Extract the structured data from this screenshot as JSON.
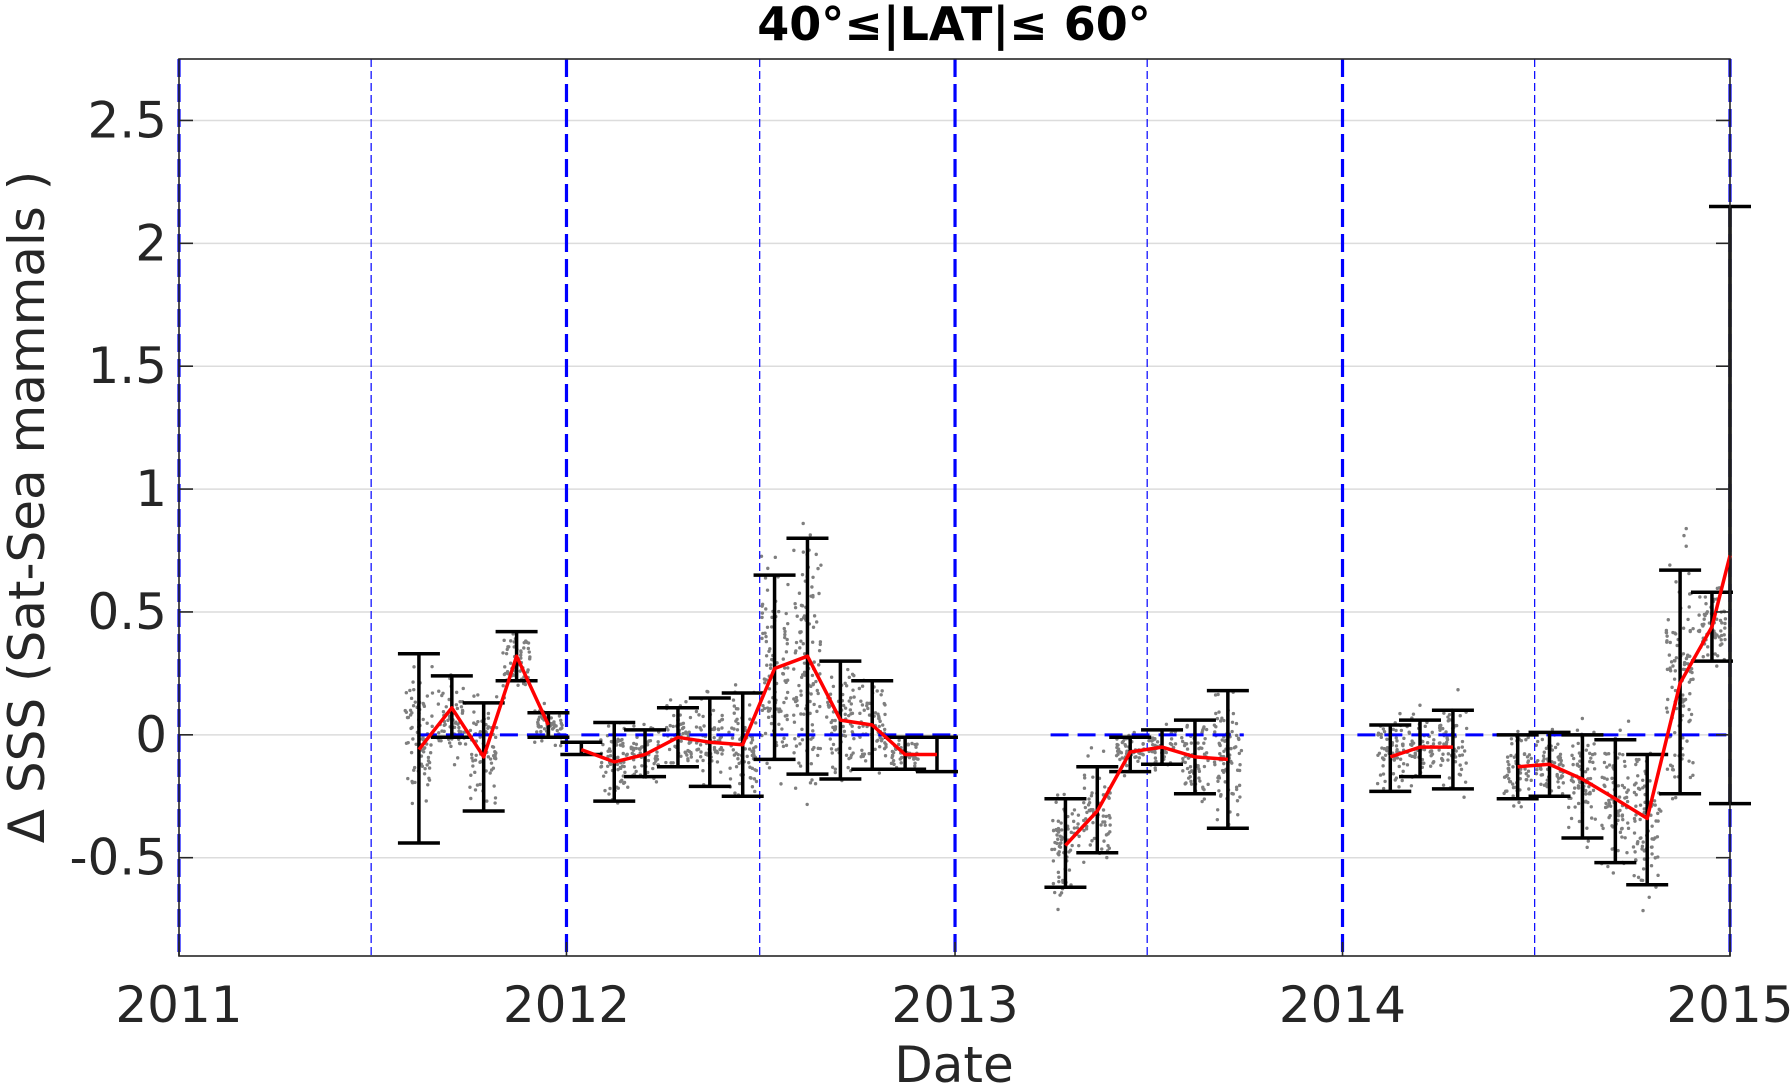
{
  "chart_data": {
    "type": "scatter",
    "title": "40°≤|LAT|≤ 60°",
    "xlabel": "Date",
    "ylabel": "Δ SSS (Sat-Sea mammals )",
    "xlim": [
      "2011-01-01",
      "2015-01-01"
    ],
    "ylim": [
      -0.9,
      2.75
    ],
    "x_ticks": [
      "2011",
      "2012",
      "2013",
      "2014",
      "2015"
    ],
    "y_ticks": [
      -0.5,
      0,
      0.5,
      1,
      1.5,
      2,
      2.5
    ],
    "y_tick_labels": [
      "-0.5",
      "0",
      "0.5",
      "1",
      "1.5",
      "2",
      "2.5"
    ],
    "grid": "horizontal",
    "year_lines": [
      "2011-01-01",
      "2012-01-01",
      "2013-01-01",
      "2014-01-01",
      "2015-01-01"
    ],
    "midyear_lines": [
      "2011-07-01",
      "2012-07-01",
      "2013-07-01",
      "2014-07-01"
    ],
    "zero_reference_segments": [
      [
        "2011-08-15",
        "2012-01-01"
      ],
      [
        "2012-01-15",
        "2013-01-01"
      ],
      [
        "2013-04-01",
        "2013-09-30"
      ],
      [
        "2014-01-15",
        "2015-01-01"
      ]
    ],
    "monthly_mean": {
      "color": "#ff0000",
      "segments": [
        {
          "x": [
            "2011-08-15",
            "2011-09-15",
            "2011-10-15",
            "2011-11-15",
            "2011-12-15"
          ],
          "y": [
            -0.06,
            0.11,
            -0.09,
            0.32,
            0.04
          ]
        },
        {
          "x": [
            "2012-01-15",
            "2012-02-15",
            "2012-03-15",
            "2012-04-15",
            "2012-05-15",
            "2012-06-15",
            "2012-07-15",
            "2012-08-15",
            "2012-09-15",
            "2012-10-15",
            "2012-11-15",
            "2012-12-15"
          ],
          "y": [
            -0.06,
            -0.11,
            -0.08,
            -0.01,
            -0.03,
            -0.04,
            0.27,
            0.32,
            0.06,
            0.04,
            -0.08,
            -0.08
          ]
        },
        {
          "x": [
            "2013-04-15",
            "2013-05-15",
            "2013-06-15",
            "2013-07-15",
            "2013-08-15",
            "2013-09-15"
          ],
          "y": [
            -0.45,
            -0.31,
            -0.07,
            -0.05,
            -0.09,
            -0.1
          ]
        },
        {
          "x": [
            "2014-02-15",
            "2014-03-15",
            "2014-04-15"
          ],
          "y": [
            -0.09,
            -0.05,
            -0.05
          ]
        },
        {
          "x": [
            "2014-06-15",
            "2014-07-15",
            "2014-08-15",
            "2014-09-15",
            "2014-10-15",
            "2014-11-15",
            "2014-12-15",
            "2015-01-01"
          ],
          "y": [
            -0.13,
            -0.12,
            -0.18,
            -0.26,
            -0.34,
            0.21,
            0.44,
            0.73
          ]
        }
      ]
    },
    "error_bars": [
      {
        "x": "2011-08-15",
        "low": -0.44,
        "high": 0.33
      },
      {
        "x": "2011-09-15",
        "low": -0.01,
        "high": 0.24
      },
      {
        "x": "2011-10-15",
        "low": -0.31,
        "high": 0.13
      },
      {
        "x": "2011-11-15",
        "low": 0.22,
        "high": 0.42
      },
      {
        "x": "2011-12-15",
        "low": -0.01,
        "high": 0.09
      },
      {
        "x": "2012-01-15",
        "low": -0.08,
        "high": -0.03
      },
      {
        "x": "2012-02-15",
        "low": -0.27,
        "high": 0.05
      },
      {
        "x": "2012-03-15",
        "low": -0.17,
        "high": 0.02
      },
      {
        "x": "2012-04-15",
        "low": -0.13,
        "high": 0.11
      },
      {
        "x": "2012-05-15",
        "low": -0.21,
        "high": 0.15
      },
      {
        "x": "2012-06-15",
        "low": -0.25,
        "high": 0.17
      },
      {
        "x": "2012-07-15",
        "low": -0.1,
        "high": 0.65
      },
      {
        "x": "2012-08-15",
        "low": -0.16,
        "high": 0.8
      },
      {
        "x": "2012-09-15",
        "low": -0.18,
        "high": 0.3
      },
      {
        "x": "2012-10-15",
        "low": -0.14,
        "high": 0.22
      },
      {
        "x": "2012-11-15",
        "low": -0.14,
        "high": -0.01
      },
      {
        "x": "2012-12-15",
        "low": -0.15,
        "high": -0.01
      },
      {
        "x": "2013-04-15",
        "low": -0.62,
        "high": -0.26
      },
      {
        "x": "2013-05-15",
        "low": -0.48,
        "high": -0.13
      },
      {
        "x": "2013-06-15",
        "low": -0.15,
        "high": -0.01
      },
      {
        "x": "2013-07-15",
        "low": -0.12,
        "high": 0.02
      },
      {
        "x": "2013-08-15",
        "low": -0.24,
        "high": 0.06
      },
      {
        "x": "2013-09-15",
        "low": -0.38,
        "high": 0.18
      },
      {
        "x": "2014-02-15",
        "low": -0.23,
        "high": 0.04
      },
      {
        "x": "2014-03-15",
        "low": -0.17,
        "high": 0.06
      },
      {
        "x": "2014-04-15",
        "low": -0.22,
        "high": 0.1
      },
      {
        "x": "2014-06-15",
        "low": -0.26,
        "high": 0.0
      },
      {
        "x": "2014-07-15",
        "low": -0.25,
        "high": 0.01
      },
      {
        "x": "2014-08-15",
        "low": -0.42,
        "high": 0.0
      },
      {
        "x": "2014-09-15",
        "low": -0.52,
        "high": -0.02
      },
      {
        "x": "2014-10-15",
        "low": -0.61,
        "high": -0.08
      },
      {
        "x": "2014-11-15",
        "low": -0.24,
        "high": 0.67
      },
      {
        "x": "2014-12-15",
        "low": 0.3,
        "high": 0.58
      },
      {
        "x": "2015-01-01",
        "low": -0.28,
        "high": 2.15
      }
    ],
    "scatter_clusters": [
      {
        "x": "2011-08-15",
        "y_center": 0.0,
        "y_spread": 0.22
      },
      {
        "x": "2011-09-15",
        "y_center": 0.05,
        "y_spread": 0.15
      },
      {
        "x": "2011-10-15",
        "y_center": -0.05,
        "y_spread": 0.18
      },
      {
        "x": "2011-11-15",
        "y_center": 0.3,
        "y_spread": 0.12
      },
      {
        "x": "2011-12-15",
        "y_center": 0.04,
        "y_spread": 0.06
      },
      {
        "x": "2012-02-15",
        "y_center": -0.1,
        "y_spread": 0.15
      },
      {
        "x": "2012-03-15",
        "y_center": -0.08,
        "y_spread": 0.1
      },
      {
        "x": "2012-04-15",
        "y_center": -0.02,
        "y_spread": 0.12
      },
      {
        "x": "2012-05-15",
        "y_center": -0.03,
        "y_spread": 0.15
      },
      {
        "x": "2012-06-15",
        "y_center": -0.04,
        "y_spread": 0.2
      },
      {
        "x": "2012-07-15",
        "y_center": 0.25,
        "y_spread": 0.35
      },
      {
        "x": "2012-08-15",
        "y_center": 0.3,
        "y_spread": 0.45
      },
      {
        "x": "2012-09-15",
        "y_center": 0.06,
        "y_spread": 0.22
      },
      {
        "x": "2012-10-15",
        "y_center": 0.04,
        "y_spread": 0.17
      },
      {
        "x": "2012-11-15",
        "y_center": -0.08,
        "y_spread": 0.06
      },
      {
        "x": "2013-04-15",
        "y_center": -0.45,
        "y_spread": 0.18
      },
      {
        "x": "2013-05-15",
        "y_center": -0.31,
        "y_spread": 0.16
      },
      {
        "x": "2013-06-15",
        "y_center": -0.07,
        "y_spread": 0.07
      },
      {
        "x": "2013-07-15",
        "y_center": -0.05,
        "y_spread": 0.07
      },
      {
        "x": "2013-08-15",
        "y_center": -0.09,
        "y_spread": 0.14
      },
      {
        "x": "2013-09-15",
        "y_center": -0.1,
        "y_spread": 0.25
      },
      {
        "x": "2014-02-15",
        "y_center": -0.09,
        "y_spread": 0.13
      },
      {
        "x": "2014-03-15",
        "y_center": -0.05,
        "y_spread": 0.11
      },
      {
        "x": "2014-04-15",
        "y_center": -0.05,
        "y_spread": 0.15
      },
      {
        "x": "2014-06-15",
        "y_center": -0.13,
        "y_spread": 0.13
      },
      {
        "x": "2014-07-15",
        "y_center": -0.12,
        "y_spread": 0.13
      },
      {
        "x": "2014-08-15",
        "y_center": -0.18,
        "y_spread": 0.2
      },
      {
        "x": "2014-09-15",
        "y_center": -0.26,
        "y_spread": 0.25
      },
      {
        "x": "2014-10-15",
        "y_center": -0.34,
        "y_spread": 0.26
      },
      {
        "x": "2014-11-15",
        "y_center": 0.21,
        "y_spread": 0.4
      },
      {
        "x": "2014-12-15",
        "y_center": 0.44,
        "y_spread": 0.14
      }
    ],
    "colors": {
      "scatter": "#7f7f7f",
      "error_bar": "#000000",
      "reference": "#0000ff",
      "grid": "#dcdcdc"
    }
  }
}
